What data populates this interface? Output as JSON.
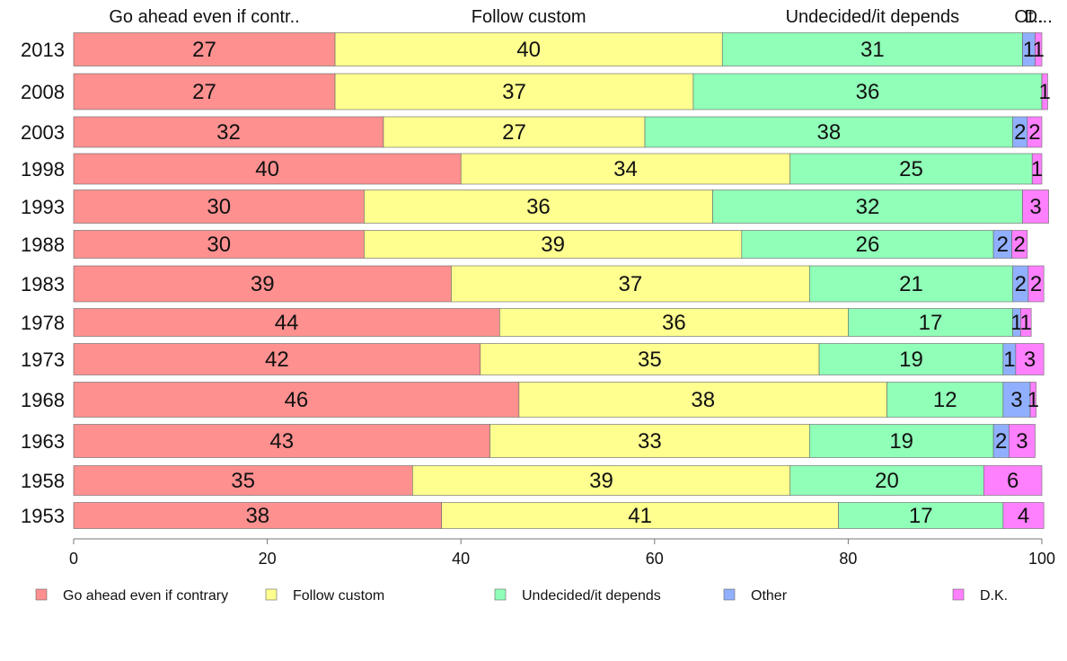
{
  "chart_data": {
    "type": "bar",
    "orientation": "horizontal",
    "stacked": true,
    "categories": [
      "2013",
      "2008",
      "2003",
      "1998",
      "1993",
      "1988",
      "1983",
      "1978",
      "1973",
      "1968",
      "1963",
      "1958",
      "1953"
    ],
    "series": [
      {
        "name": "Go ahead even if contrary",
        "color": "#FF9090",
        "values": [
          27,
          27,
          32,
          40,
          30,
          30,
          39,
          44,
          42,
          46,
          43,
          35,
          38
        ],
        "labels": [
          "27",
          "27",
          "32",
          "40",
          "30",
          "30",
          "39",
          "44",
          "42",
          "46",
          "43",
          "35",
          "38"
        ]
      },
      {
        "name": "Follow custom",
        "color": "#FFFF90",
        "values": [
          40,
          37,
          27,
          34,
          36,
          39,
          37,
          36,
          35,
          38,
          33,
          39,
          41
        ],
        "labels": [
          "40",
          "37",
          "27",
          "34",
          "36",
          "39",
          "37",
          "36",
          "35",
          "38",
          "33",
          "39",
          "41"
        ]
      },
      {
        "name": "Undecided/it depends",
        "color": "#90FFB8",
        "values": [
          31,
          36,
          38,
          25,
          32,
          26,
          21,
          17,
          19,
          12,
          19,
          20,
          17
        ],
        "labels": [
          "31",
          "36",
          "38",
          "25",
          "32",
          "26",
          "21",
          "17",
          "19",
          "12",
          "19",
          "20",
          "17"
        ]
      },
      {
        "name": "Other",
        "color": "#90B0FF",
        "values": [
          1.3,
          0,
          1.5,
          0,
          0,
          1.9,
          1.6,
          0.8,
          1.3,
          2.8,
          1.6,
          0,
          0
        ],
        "labels": [
          "1",
          "",
          "2",
          "",
          "",
          "2",
          "2",
          "1",
          "1",
          "3",
          "2",
          "",
          ""
        ]
      },
      {
        "name": "D.K.",
        "color": "#FF80FF",
        "values": [
          0.7,
          0.6,
          1.5,
          1,
          2.7,
          1.6,
          1.6,
          1.1,
          2.9,
          0.6,
          2.7,
          6,
          4.2
        ],
        "labels": [
          "1",
          "1",
          "2",
          "1",
          "3",
          "2",
          "2",
          "1",
          "3",
          "1",
          "3",
          "6",
          "4"
        ]
      }
    ],
    "top_labels": [
      "Go ahead even if contr..",
      "Follow custom",
      "Undecided/it depends",
      "Ot..",
      "D..."
    ],
    "xlim": [
      0,
      100
    ],
    "xticks": [
      "0",
      "20",
      "40",
      "60",
      "80",
      "100"
    ],
    "grid": false,
    "legend_position": "bottom"
  }
}
